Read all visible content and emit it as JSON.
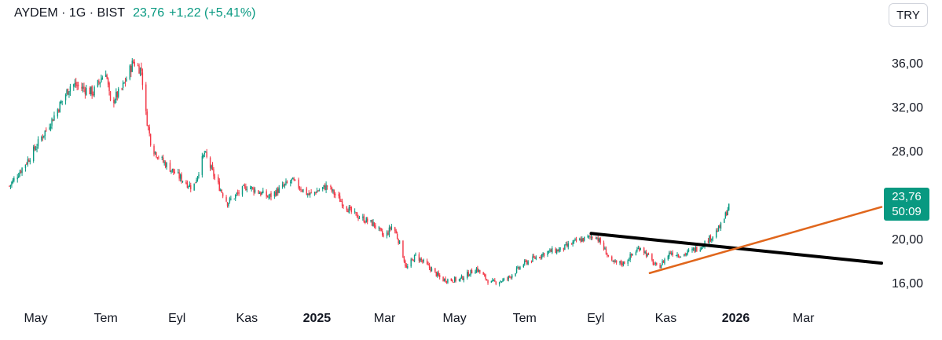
{
  "header": {
    "symbol_line": "AYDEM · 1G · BIST",
    "price": "23,76",
    "change": "+1,22 (+5,41%)"
  },
  "currency_button": "TRY",
  "last_price_tag": {
    "price": "23,76",
    "countdown": "50:09"
  },
  "colors": {
    "up": "#089981",
    "down": "#f23645",
    "trend_black": "#000000",
    "trend_orange": "#e0661c"
  },
  "chart_data": {
    "type": "candlestick",
    "title": "",
    "y_ticks": [
      {
        "value": 36,
        "label": "36,00"
      },
      {
        "value": 32,
        "label": "32,00"
      },
      {
        "value": 28,
        "label": "28,00"
      },
      {
        "value": 20,
        "label": "20,00"
      },
      {
        "value": 16,
        "label": "16,00"
      }
    ],
    "ylim": [
      14.8,
      39.4
    ],
    "x_ticks": [
      {
        "date": "2024-05-01",
        "label": "May",
        "bold": false
      },
      {
        "date": "2024-07-01",
        "label": "Tem",
        "bold": false
      },
      {
        "date": "2024-09-01",
        "label": "Eyl",
        "bold": false
      },
      {
        "date": "2024-11-01",
        "label": "Kas",
        "bold": false
      },
      {
        "date": "2025-01-01",
        "label": "2025",
        "bold": true
      },
      {
        "date": "2025-03-01",
        "label": "Mar",
        "bold": false
      },
      {
        "date": "2025-05-01",
        "label": "May",
        "bold": false
      },
      {
        "date": "2025-07-01",
        "label": "Tem",
        "bold": false
      },
      {
        "date": "2025-09-01",
        "label": "Eyl",
        "bold": false
      },
      {
        "date": "2025-11-01",
        "label": "Kas",
        "bold": false
      },
      {
        "date": "2026-01-01",
        "label": "2026",
        "bold": true
      },
      {
        "date": "2026-03-01",
        "label": "Mar",
        "bold": false
      }
    ],
    "x_range": [
      "2024-04-08",
      "2026-05-08"
    ],
    "price_path": [
      [
        "2024-04-08",
        25.0
      ],
      [
        "2024-04-25",
        27.5
      ],
      [
        "2024-05-15",
        31.0
      ],
      [
        "2024-06-01",
        34.3
      ],
      [
        "2024-06-20",
        33.5
      ],
      [
        "2024-07-01",
        35.5
      ],
      [
        "2024-07-05",
        32.5
      ],
      [
        "2024-07-15",
        33.8
      ],
      [
        "2024-07-25",
        36.3
      ],
      [
        "2024-08-01",
        35.5
      ],
      [
        "2024-08-05",
        31.5
      ],
      [
        "2024-08-10",
        28.5
      ],
      [
        "2024-08-20",
        27.2
      ],
      [
        "2024-09-01",
        26.0
      ],
      [
        "2024-09-15",
        24.8
      ],
      [
        "2024-09-25",
        28.0
      ],
      [
        "2024-10-05",
        25.5
      ],
      [
        "2024-10-15",
        23.5
      ],
      [
        "2024-11-01",
        25.0
      ],
      [
        "2024-11-20",
        24.0
      ],
      [
        "2024-12-10",
        25.5
      ],
      [
        "2024-12-25",
        24.2
      ],
      [
        "2025-01-10",
        25.0
      ],
      [
        "2025-02-01",
        22.5
      ],
      [
        "2025-02-20",
        21.5
      ],
      [
        "2025-03-01",
        20.3
      ],
      [
        "2025-03-08",
        21.5
      ],
      [
        "2025-03-15",
        19.5
      ],
      [
        "2025-03-20",
        17.5
      ],
      [
        "2025-03-28",
        18.7
      ],
      [
        "2025-04-10",
        17.5
      ],
      [
        "2025-04-20",
        16.5
      ],
      [
        "2025-05-05",
        16.5
      ],
      [
        "2025-05-20",
        17.5
      ],
      [
        "2025-06-01",
        16.2
      ],
      [
        "2025-06-15",
        16.5
      ],
      [
        "2025-07-01",
        18.0
      ],
      [
        "2025-07-20",
        19.0
      ],
      [
        "2025-08-01",
        19.2
      ],
      [
        "2025-08-15",
        20.0
      ],
      [
        "2025-09-01",
        20.5
      ],
      [
        "2025-09-10",
        19.0
      ],
      [
        "2025-09-15",
        18.0
      ],
      [
        "2025-09-25",
        18.0
      ],
      [
        "2025-10-10",
        19.5
      ],
      [
        "2025-10-25",
        17.5
      ],
      [
        "2025-11-05",
        19.0
      ],
      [
        "2025-11-15",
        18.7
      ],
      [
        "2025-12-01",
        19.5
      ],
      [
        "2025-12-12",
        20.5
      ],
      [
        "2025-12-20",
        21.5
      ],
      [
        "2025-12-28",
        23.8
      ]
    ],
    "trendlines": [
      {
        "color": "black",
        "from": [
          "2025-08-28",
          20.7
        ],
        "to": [
          "2026-05-08",
          18.0
        ]
      },
      {
        "color": "orange",
        "from": [
          "2025-10-18",
          17.1
        ],
        "to": [
          "2026-05-08",
          23.1
        ]
      }
    ]
  }
}
